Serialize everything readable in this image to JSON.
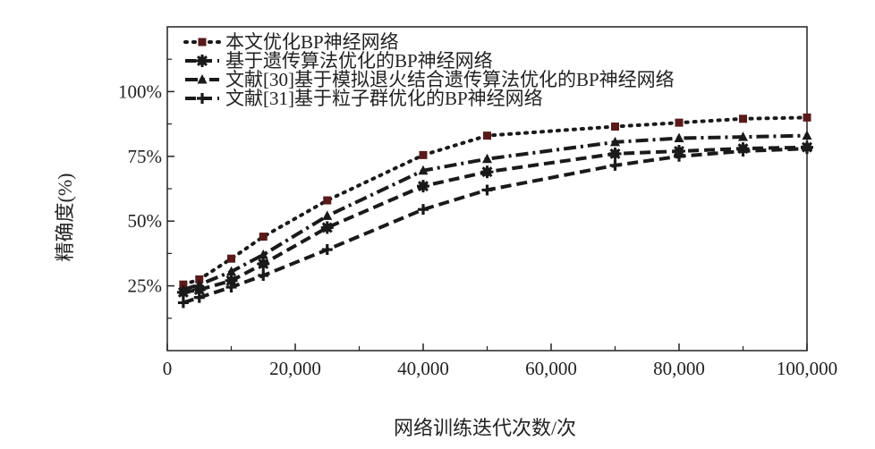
{
  "chart_data": {
    "type": "line",
    "title": "",
    "xlabel": "网络训练迭代次数/次",
    "ylabel": "精确度(%)",
    "xlim": [
      0,
      100000
    ],
    "ylim": [
      0,
      125
    ],
    "xticks": [
      0,
      20000,
      40000,
      60000,
      80000,
      100000
    ],
    "xtick_labels": [
      "0",
      "20,000",
      "40,000",
      "60,000",
      "80,000",
      "100,000"
    ],
    "yticks": [
      25,
      50,
      75,
      100
    ],
    "ytick_labels": [
      "25%",
      "50%",
      "75%",
      "100%"
    ],
    "grid": false,
    "legend_position": "top-left",
    "series": [
      {
        "name": "本文优化BP神经网络",
        "marker": "square",
        "dash": "dot",
        "marker_color": "#5a1a1a",
        "x": [
          2500,
          5000,
          10000,
          15000,
          25000,
          40000,
          50000,
          70000,
          80000,
          90000,
          100000
        ],
        "y": [
          25.5,
          27.5,
          35.5,
          44,
          58,
          75.5,
          83,
          86.5,
          88,
          89.5,
          90
        ]
      },
      {
        "name": "基于遗传算法优化的BP神经网络",
        "marker": "gear",
        "dash": "dash",
        "marker_color": "#1a1a1a",
        "x": [
          2500,
          5000,
          10000,
          15000,
          25000,
          40000,
          50000,
          70000,
          80000,
          90000,
          100000
        ],
        "y": [
          22.5,
          23.5,
          27,
          33.5,
          47.5,
          63.5,
          69,
          76,
          77,
          78,
          78.5
        ]
      },
      {
        "name": "文献[30]基于模拟退火结合遗传算法优化的BP神经网络",
        "marker": "triangle",
        "dash": "dashdot",
        "marker_color": "#1a1a1a",
        "x": [
          2500,
          5000,
          10000,
          15000,
          25000,
          40000,
          50000,
          70000,
          80000,
          90000,
          100000
        ],
        "y": [
          23.5,
          25.5,
          30.5,
          37,
          52,
          69.5,
          74,
          80.5,
          82,
          82.5,
          83
        ]
      },
      {
        "name": "文献[31]基于粒子群优化的BP神经网络",
        "marker": "plus",
        "dash": "dash",
        "marker_color": "#1a1a1a",
        "x": [
          2500,
          5000,
          10000,
          15000,
          25000,
          40000,
          50000,
          70000,
          80000,
          90000,
          100000
        ],
        "y": [
          18.5,
          20.5,
          24.5,
          29,
          39,
          54.5,
          62,
          71.5,
          75,
          77,
          78
        ]
      }
    ]
  }
}
